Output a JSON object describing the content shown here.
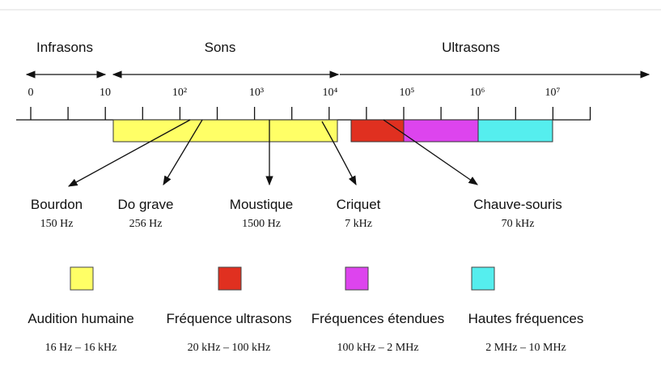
{
  "regions": [
    {
      "label": "Infrasons"
    },
    {
      "label": "Sons"
    },
    {
      "label": "Ultrasons"
    }
  ],
  "scale_labels": [
    "0",
    "10",
    "10²",
    "10³",
    "10⁴",
    "10⁵",
    "10⁶",
    "10⁷"
  ],
  "sources": [
    {
      "name": "Bourdon",
      "frequency": "150 Hz"
    },
    {
      "name": "Do grave",
      "frequency": "256 Hz"
    },
    {
      "name": "Moustique",
      "frequency": "1500 Hz"
    },
    {
      "name": "Criquet",
      "frequency": "7 kHz"
    },
    {
      "name": "Chauve-souris",
      "frequency": "70 kHz"
    }
  ],
  "legend": [
    {
      "label": "Audition humaine",
      "range": "16 Hz – 16 kHz",
      "color": "#ffff66"
    },
    {
      "label": "Fréquence ultrasons",
      "range": "20 kHz – 100 kHz",
      "color": "#e03020"
    },
    {
      "label": "Fréquences étendues",
      "range": "100 kHz – 2 MHz",
      "color": "#dd44ee"
    },
    {
      "label": "Hautes fréquences",
      "range": "2 MHz – 10 MHz",
      "color": "#55eeee"
    }
  ]
}
